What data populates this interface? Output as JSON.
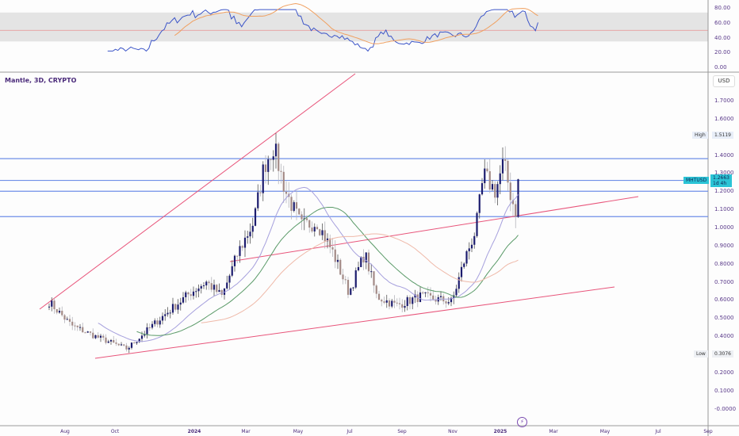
{
  "header": {
    "title": "Mantle, 3D, CRYPTO",
    "currency": "USD"
  },
  "price_axis": {
    "labels": [
      "1.7000",
      "1.6000",
      "1.4000",
      "1.3000",
      "1.2000",
      "1.1000",
      "1.0000",
      "0.9000",
      "0.8000",
      "0.7000",
      "0.6000",
      "0.5000",
      "0.4000",
      "0.2000",
      "0.1000",
      "-0.0000"
    ],
    "values": [
      1.7,
      1.6,
      1.4,
      1.3,
      1.2,
      1.1,
      1.0,
      0.9,
      0.8,
      0.7,
      0.6,
      0.5,
      0.4,
      0.2,
      0.1,
      0
    ]
  },
  "rsi_axis": {
    "labels": [
      "80.00",
      "60.00",
      "40.00",
      "20.00",
      "0.00"
    ],
    "values": [
      80,
      60,
      40,
      20,
      0
    ]
  },
  "tags": {
    "high_label": "High",
    "high_value": "1.5119",
    "low_label": "Low",
    "low_value": "0.3076",
    "symbol": "MHTUSD",
    "last_price": "1.2663",
    "countdown": "1d 4h"
  },
  "time_axis": [
    "Aug",
    "Oct",
    "2024",
    "Mar",
    "May",
    "Jul",
    "Sep",
    "Nov",
    "2025",
    "Mar",
    "May",
    "Jul",
    "Sep"
  ],
  "events_icon": "lightning-icon",
  "colors": {
    "up": "#1c1c6e",
    "down": "#a38a86",
    "hline": "#6f8fe8",
    "trend": "#e8547a",
    "ma_fast": "#a6a0dd",
    "ma_mid": "#5a9a68",
    "ma_slow": "#efb9a9",
    "rsi": "#3c55c8",
    "rsi_ma": "#f0a060"
  },
  "chart_data": {
    "type": "candlestick",
    "interval": "3D",
    "close_keypoints": [
      0.59,
      0.46,
      0.4,
      0.33,
      0.49,
      0.64,
      0.7,
      0.62,
      0.86,
      1.03,
      1.34,
      1.45,
      1.2,
      1.01,
      1.03,
      0.86,
      0.64,
      0.86,
      0.62,
      0.57,
      0.62,
      0.59,
      0.81,
      0.99,
      1.29,
      1.2,
      1.36,
      1.16,
      1.07,
      1.2663
    ],
    "horizontal_levels": [
      1.38,
      1.26,
      1.2,
      1.06
    ],
    "high": 1.5119,
    "low": 0.3076
  }
}
